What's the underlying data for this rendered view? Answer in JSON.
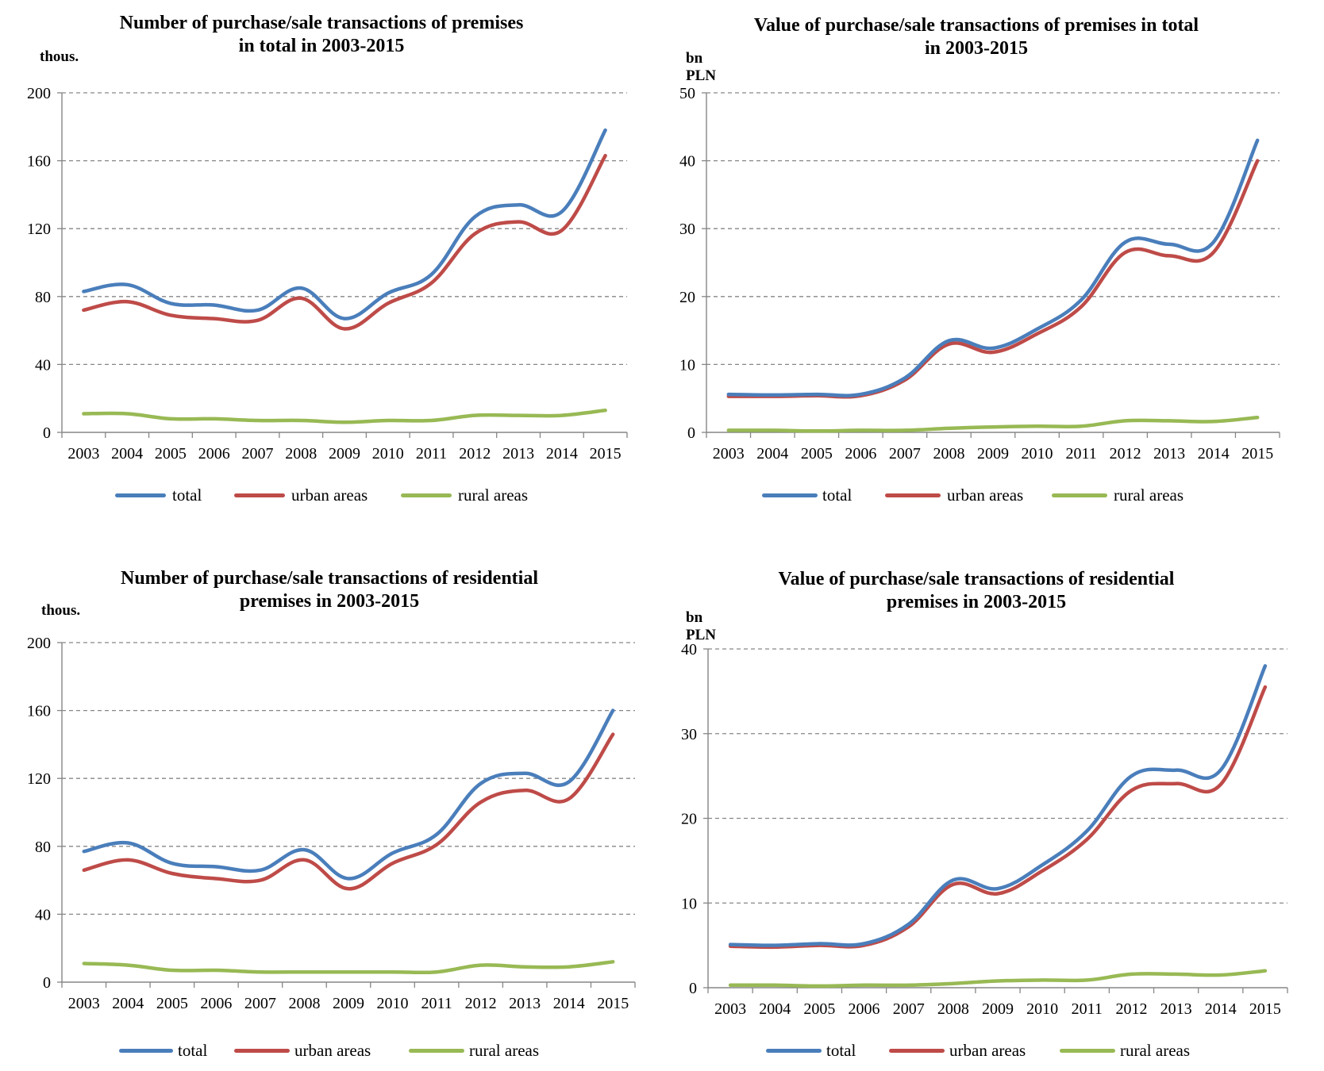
{
  "colors": {
    "total": "#4a7ebb",
    "urban": "#be4b48",
    "rural": "#98b954",
    "grid": "#868686",
    "axis": "#868686"
  },
  "chart_data": [
    {
      "type": "line",
      "title": "Number of purchase/sale transactions of premises in total in 2003-2015",
      "title_lines": [
        "Number of purchase/sale transactions of premises",
        "in total in 2003-2015"
      ],
      "ylabel": "thous.",
      "ylim": [
        0,
        200
      ],
      "yticks": [
        0,
        40,
        80,
        120,
        160,
        200
      ],
      "grid": true,
      "legend": "bottom",
      "x": [
        "2003",
        "2004",
        "2005",
        "2006",
        "2007",
        "2008",
        "2009",
        "2010",
        "2011",
        "2012",
        "2013",
        "2014",
        "2015"
      ],
      "series": [
        {
          "name": "total",
          "color_key": "total",
          "values": [
            83,
            87,
            76,
            75,
            72,
            85,
            67,
            82,
            93,
            127,
            134,
            130,
            178
          ]
        },
        {
          "name": "urban areas",
          "color_key": "urban",
          "values": [
            72,
            77,
            69,
            67,
            66,
            79,
            61,
            76,
            88,
            117,
            124,
            119,
            163
          ]
        },
        {
          "name": "rural areas",
          "color_key": "rural",
          "values": [
            11,
            11,
            8,
            8,
            7,
            7,
            6,
            7,
            7,
            10,
            10,
            10,
            13
          ]
        }
      ]
    },
    {
      "type": "line",
      "title": "Value of purchase/sale transactions of premises in total in 2003-2015",
      "title_lines": [
        "Value of purchase/sale transactions of premises in total",
        "in 2003-2015"
      ],
      "ylabel": "bn PLN",
      "ylim": [
        0,
        50
      ],
      "yticks": [
        0,
        10,
        20,
        30,
        40,
        50
      ],
      "grid": true,
      "legend": "bottom",
      "x": [
        "2003",
        "2004",
        "2005",
        "2006",
        "2007",
        "2008",
        "2009",
        "2010",
        "2011",
        "2012",
        "2013",
        "2014",
        "2015"
      ],
      "series": [
        {
          "name": "total",
          "color_key": "total",
          "values": [
            5.6,
            5.5,
            5.6,
            5.6,
            8.0,
            13.5,
            12.4,
            15.2,
            19.5,
            28.0,
            27.7,
            28.0,
            43.0
          ]
        },
        {
          "name": "urban areas",
          "color_key": "urban",
          "values": [
            5.3,
            5.3,
            5.4,
            5.4,
            7.7,
            13.0,
            11.8,
            14.5,
            18.5,
            26.5,
            26.0,
            26.5,
            40.0
          ]
        },
        {
          "name": "rural areas",
          "color_key": "rural",
          "values": [
            0.3,
            0.3,
            0.2,
            0.3,
            0.3,
            0.6,
            0.8,
            0.9,
            0.9,
            1.7,
            1.7,
            1.6,
            2.2
          ]
        }
      ]
    },
    {
      "type": "line",
      "title": "Number of purchase/sale transactions of residential premises in 2003-2015",
      "title_lines": [
        "Number of purchase/sale transactions of residential",
        "premises in 2003-2015"
      ],
      "ylabel": "thous.",
      "ylim": [
        0,
        200
      ],
      "yticks": [
        0,
        40,
        80,
        120,
        160,
        200
      ],
      "grid": true,
      "legend": "bottom",
      "x": [
        "2003",
        "2004",
        "2005",
        "2006",
        "2007",
        "2008",
        "2009",
        "2010",
        "2011",
        "2012",
        "2013",
        "2014",
        "2015"
      ],
      "series": [
        {
          "name": "total",
          "color_key": "total",
          "values": [
            77,
            82,
            70,
            68,
            66,
            78,
            61,
            76,
            87,
            117,
            123,
            118,
            160
          ]
        },
        {
          "name": "urban areas",
          "color_key": "urban",
          "values": [
            66,
            72,
            64,
            61,
            60,
            72,
            55,
            70,
            81,
            106,
            113,
            108,
            146
          ]
        },
        {
          "name": "rural areas",
          "color_key": "rural",
          "values": [
            11,
            10,
            7,
            7,
            6,
            6,
            6,
            6,
            6,
            10,
            9,
            9,
            12
          ]
        }
      ]
    },
    {
      "type": "line",
      "title": "Value of purchase/sale transactions of residential premises in 2003-2015",
      "title_lines": [
        "Value of purchase/sale transactions of residential",
        "premises in 2003-2015"
      ],
      "ylabel": "bn PLN",
      "ylim": [
        0,
        40
      ],
      "yticks": [
        0,
        10,
        20,
        30,
        40
      ],
      "grid": true,
      "legend": "bottom",
      "x": [
        "2003",
        "2004",
        "2005",
        "2006",
        "2007",
        "2008",
        "2009",
        "2010",
        "2011",
        "2012",
        "2013",
        "2014",
        "2015"
      ],
      "series": [
        {
          "name": "total",
          "color_key": "total",
          "values": [
            5.1,
            5.0,
            5.2,
            5.2,
            7.5,
            12.7,
            11.7,
            14.5,
            18.5,
            25.0,
            25.7,
            25.7,
            38.0
          ]
        },
        {
          "name": "urban areas",
          "color_key": "urban",
          "values": [
            4.9,
            4.8,
            5.0,
            5.0,
            7.2,
            12.2,
            11.1,
            13.8,
            17.5,
            23.3,
            24.1,
            24.0,
            35.5
          ]
        },
        {
          "name": "rural areas",
          "color_key": "rural",
          "values": [
            0.3,
            0.3,
            0.2,
            0.3,
            0.3,
            0.5,
            0.8,
            0.9,
            0.9,
            1.6,
            1.6,
            1.5,
            2.0
          ]
        }
      ]
    }
  ]
}
